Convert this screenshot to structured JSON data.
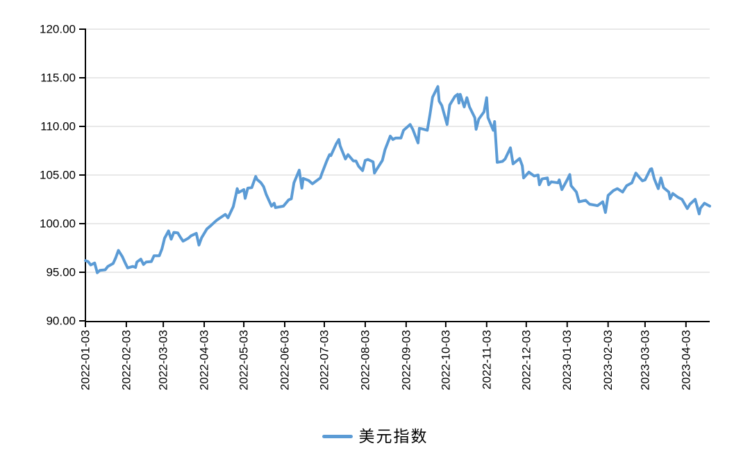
{
  "chart_data": {
    "type": "line",
    "title": "",
    "grid": "horizontal",
    "legend": {
      "label": "美元指数",
      "position": "bottom-center"
    },
    "x_axis": {
      "tick_labels": [
        "2022-01-03",
        "2022-02-03",
        "2022-03-03",
        "2022-04-03",
        "2022-05-03",
        "2022-06-03",
        "2022-07-03",
        "2022-08-03",
        "2022-09-03",
        "2022-10-03",
        "2022-11-03",
        "2022-12-03",
        "2023-01-03",
        "2023-02-03",
        "2023-03-03",
        "2023-04-03"
      ]
    },
    "y_axis": {
      "tick_labels": [
        "90.00",
        "95.00",
        "100.00",
        "105.00",
        "110.00",
        "115.00",
        "120.00"
      ],
      "tick_values": [
        90,
        95,
        100,
        105,
        110,
        115,
        120
      ],
      "range": [
        90,
        120
      ]
    },
    "series": [
      {
        "name": "美元指数",
        "color": "#5B9BD5",
        "points": [
          [
            "2022-01-03",
            96.2
          ],
          [
            "2022-01-05",
            96.1
          ],
          [
            "2022-01-07",
            95.75
          ],
          [
            "2022-01-10",
            95.95
          ],
          [
            "2022-01-12",
            94.95
          ],
          [
            "2022-01-14",
            95.2
          ],
          [
            "2022-01-18",
            95.25
          ],
          [
            "2022-01-20",
            95.6
          ],
          [
            "2022-01-24",
            95.9
          ],
          [
            "2022-01-26",
            96.5
          ],
          [
            "2022-01-28",
            97.25
          ],
          [
            "2022-01-31",
            96.6
          ],
          [
            "2022-02-02",
            96.0
          ],
          [
            "2022-02-04",
            95.45
          ],
          [
            "2022-02-08",
            95.6
          ],
          [
            "2022-02-10",
            95.5
          ],
          [
            "2022-02-11",
            96.05
          ],
          [
            "2022-02-14",
            96.35
          ],
          [
            "2022-02-16",
            95.8
          ],
          [
            "2022-02-18",
            96.05
          ],
          [
            "2022-02-22",
            96.1
          ],
          [
            "2022-02-24",
            96.7
          ],
          [
            "2022-02-28",
            96.7
          ],
          [
            "2022-03-02",
            97.4
          ],
          [
            "2022-03-04",
            98.5
          ],
          [
            "2022-03-07",
            99.25
          ],
          [
            "2022-03-09",
            98.4
          ],
          [
            "2022-03-11",
            99.1
          ],
          [
            "2022-03-14",
            99.05
          ],
          [
            "2022-03-16",
            98.6
          ],
          [
            "2022-03-18",
            98.2
          ],
          [
            "2022-03-22",
            98.5
          ],
          [
            "2022-03-24",
            98.75
          ],
          [
            "2022-03-28",
            99.0
          ],
          [
            "2022-03-30",
            97.8
          ],
          [
            "2022-04-01",
            98.55
          ],
          [
            "2022-04-05",
            99.45
          ],
          [
            "2022-04-08",
            99.8
          ],
          [
            "2022-04-12",
            100.3
          ],
          [
            "2022-04-14",
            100.5
          ],
          [
            "2022-04-19",
            100.95
          ],
          [
            "2022-04-21",
            100.6
          ],
          [
            "2022-04-25",
            101.75
          ],
          [
            "2022-04-27",
            102.95
          ],
          [
            "2022-04-28",
            103.6
          ],
          [
            "2022-04-29",
            103.2
          ],
          [
            "2022-05-03",
            103.5
          ],
          [
            "2022-05-04",
            102.6
          ],
          [
            "2022-05-06",
            103.65
          ],
          [
            "2022-05-09",
            103.7
          ],
          [
            "2022-05-12",
            104.85
          ],
          [
            "2022-05-13",
            104.55
          ],
          [
            "2022-05-16",
            104.2
          ],
          [
            "2022-05-18",
            103.8
          ],
          [
            "2022-05-20",
            103.0
          ],
          [
            "2022-05-24",
            101.8
          ],
          [
            "2022-05-26",
            102.1
          ],
          [
            "2022-05-27",
            101.65
          ],
          [
            "2022-05-31",
            101.75
          ],
          [
            "2022-06-02",
            101.8
          ],
          [
            "2022-06-06",
            102.45
          ],
          [
            "2022-06-08",
            102.55
          ],
          [
            "2022-06-10",
            104.2
          ],
          [
            "2022-06-14",
            105.5
          ],
          [
            "2022-06-16",
            103.65
          ],
          [
            "2022-06-17",
            104.65
          ],
          [
            "2022-06-21",
            104.45
          ],
          [
            "2022-06-24",
            104.1
          ],
          [
            "2022-06-28",
            104.5
          ],
          [
            "2022-06-30",
            104.7
          ],
          [
            "2022-07-01",
            105.1
          ],
          [
            "2022-07-05",
            106.5
          ],
          [
            "2022-07-07",
            107.1
          ],
          [
            "2022-07-08",
            107.0
          ],
          [
            "2022-07-12",
            108.2
          ],
          [
            "2022-07-14",
            108.65
          ],
          [
            "2022-07-15",
            108.0
          ],
          [
            "2022-07-19",
            106.65
          ],
          [
            "2022-07-21",
            107.1
          ],
          [
            "2022-07-25",
            106.45
          ],
          [
            "2022-07-27",
            106.45
          ],
          [
            "2022-07-29",
            105.9
          ],
          [
            "2022-08-01",
            105.45
          ],
          [
            "2022-08-03",
            106.5
          ],
          [
            "2022-08-05",
            106.6
          ],
          [
            "2022-08-09",
            106.35
          ],
          [
            "2022-08-10",
            105.2
          ],
          [
            "2022-08-12",
            105.65
          ],
          [
            "2022-08-16",
            106.5
          ],
          [
            "2022-08-18",
            107.6
          ],
          [
            "2022-08-22",
            109.0
          ],
          [
            "2022-08-24",
            108.65
          ],
          [
            "2022-08-26",
            108.8
          ],
          [
            "2022-08-30",
            108.8
          ],
          [
            "2022-09-01",
            109.6
          ],
          [
            "2022-09-06",
            110.2
          ],
          [
            "2022-09-08",
            109.7
          ],
          [
            "2022-09-12",
            108.3
          ],
          [
            "2022-09-13",
            109.8
          ],
          [
            "2022-09-15",
            109.75
          ],
          [
            "2022-09-19",
            109.6
          ],
          [
            "2022-09-21",
            111.2
          ],
          [
            "2022-09-23",
            113.0
          ],
          [
            "2022-09-27",
            114.1
          ],
          [
            "2022-09-28",
            112.6
          ],
          [
            "2022-09-30",
            112.15
          ],
          [
            "2022-10-04",
            110.2
          ],
          [
            "2022-10-06",
            112.2
          ],
          [
            "2022-10-10",
            113.1
          ],
          [
            "2022-10-12",
            113.3
          ],
          [
            "2022-10-13",
            112.4
          ],
          [
            "2022-10-14",
            113.3
          ],
          [
            "2022-10-17",
            112.0
          ],
          [
            "2022-10-19",
            112.95
          ],
          [
            "2022-10-21",
            112.0
          ],
          [
            "2022-10-25",
            110.9
          ],
          [
            "2022-10-26",
            109.7
          ],
          [
            "2022-10-28",
            110.75
          ],
          [
            "2022-11-01",
            111.5
          ],
          [
            "2022-11-03",
            112.95
          ],
          [
            "2022-11-04",
            110.9
          ],
          [
            "2022-11-08",
            109.6
          ],
          [
            "2022-11-09",
            110.5
          ],
          [
            "2022-11-11",
            106.3
          ],
          [
            "2022-11-15",
            106.4
          ],
          [
            "2022-11-17",
            106.65
          ],
          [
            "2022-11-21",
            107.8
          ],
          [
            "2022-11-23",
            106.15
          ],
          [
            "2022-11-28",
            106.7
          ],
          [
            "2022-11-30",
            105.95
          ],
          [
            "2022-12-01",
            104.7
          ],
          [
            "2022-12-05",
            105.3
          ],
          [
            "2022-12-07",
            105.1
          ],
          [
            "2022-12-09",
            104.9
          ],
          [
            "2022-12-12",
            105.0
          ],
          [
            "2022-12-13",
            104.0
          ],
          [
            "2022-12-15",
            104.6
          ],
          [
            "2022-12-19",
            104.7
          ],
          [
            "2022-12-20",
            104.0
          ],
          [
            "2022-12-22",
            104.3
          ],
          [
            "2022-12-27",
            104.2
          ],
          [
            "2022-12-28",
            104.5
          ],
          [
            "2022-12-30",
            103.5
          ],
          [
            "2023-01-03",
            104.5
          ],
          [
            "2023-01-05",
            105.05
          ],
          [
            "2023-01-06",
            103.9
          ],
          [
            "2023-01-10",
            103.25
          ],
          [
            "2023-01-12",
            102.25
          ],
          [
            "2023-01-17",
            102.4
          ],
          [
            "2023-01-20",
            102.0
          ],
          [
            "2023-01-24",
            101.9
          ],
          [
            "2023-01-26",
            101.85
          ],
          [
            "2023-01-30",
            102.25
          ],
          [
            "2023-02-01",
            101.15
          ],
          [
            "2023-02-03",
            102.9
          ],
          [
            "2023-02-07",
            103.4
          ],
          [
            "2023-02-10",
            103.6
          ],
          [
            "2023-02-14",
            103.25
          ],
          [
            "2023-02-17",
            103.9
          ],
          [
            "2023-02-21",
            104.2
          ],
          [
            "2023-02-24",
            105.2
          ],
          [
            "2023-02-27",
            104.7
          ],
          [
            "2023-03-01",
            104.4
          ],
          [
            "2023-03-03",
            104.5
          ],
          [
            "2023-03-07",
            105.6
          ],
          [
            "2023-03-08",
            105.65
          ],
          [
            "2023-03-10",
            104.6
          ],
          [
            "2023-03-13",
            103.6
          ],
          [
            "2023-03-15",
            104.7
          ],
          [
            "2023-03-17",
            103.7
          ],
          [
            "2023-03-21",
            103.25
          ],
          [
            "2023-03-22",
            102.55
          ],
          [
            "2023-03-24",
            103.1
          ],
          [
            "2023-03-28",
            102.7
          ],
          [
            "2023-03-31",
            102.5
          ],
          [
            "2023-04-04",
            101.55
          ],
          [
            "2023-04-06",
            102.0
          ],
          [
            "2023-04-10",
            102.5
          ],
          [
            "2023-04-12",
            101.5
          ],
          [
            "2023-04-13",
            101.0
          ],
          [
            "2023-04-14",
            101.6
          ],
          [
            "2023-04-17",
            102.1
          ],
          [
            "2023-04-19",
            101.95
          ],
          [
            "2023-04-21",
            101.8
          ]
        ]
      }
    ]
  },
  "colors": {
    "line": "#5B9BD5",
    "grid": "#D9D9D9",
    "axis": "#000000",
    "text": "#000000",
    "background": "#FFFFFF"
  }
}
